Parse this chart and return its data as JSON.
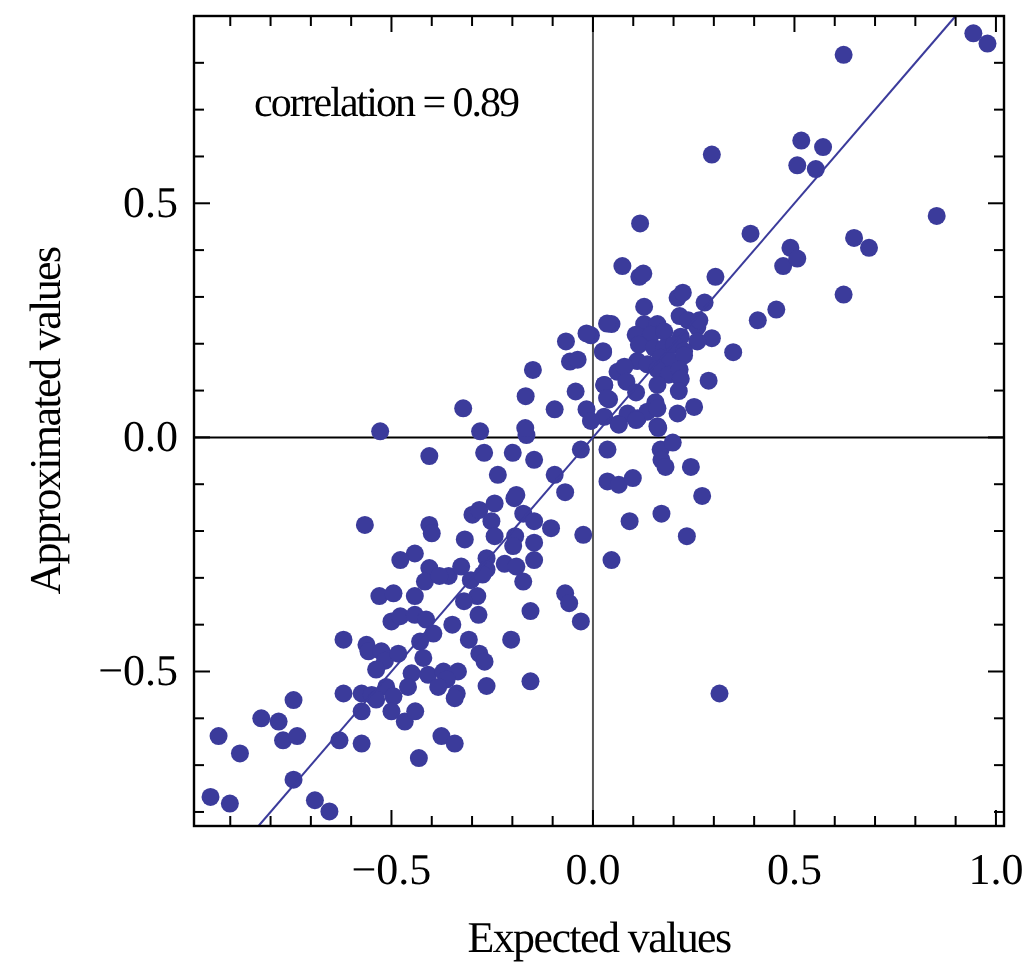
{
  "chart_data": {
    "type": "scatter",
    "xlabel": "Expected values",
    "ylabel": "Approximated values",
    "annotations": [
      "correlation = 0.89"
    ],
    "xlim": [
      -0.99,
      1.02
    ],
    "ylim": [
      -0.83,
      0.9
    ],
    "xticks": [
      {
        "value": -0.9,
        "label": null
      },
      {
        "value": -0.8,
        "label": null
      },
      {
        "value": -0.7,
        "label": null
      },
      {
        "value": -0.6,
        "label": null
      },
      {
        "value": -0.5,
        "label": "−0.5"
      },
      {
        "value": -0.4,
        "label": null
      },
      {
        "value": -0.3,
        "label": null
      },
      {
        "value": -0.2,
        "label": null
      },
      {
        "value": -0.1,
        "label": null
      },
      {
        "value": 0,
        "label": "0.0"
      },
      {
        "value": 0.1,
        "label": null
      },
      {
        "value": 0.2,
        "label": null
      },
      {
        "value": 0.3,
        "label": null
      },
      {
        "value": 0.4,
        "label": null
      },
      {
        "value": 0.5,
        "label": "0.5"
      },
      {
        "value": 0.6,
        "label": null
      },
      {
        "value": 0.7,
        "label": null
      },
      {
        "value": 0.8,
        "label": null
      },
      {
        "value": 0.9,
        "label": null
      },
      {
        "value": 1,
        "label": "1.0"
      }
    ],
    "yticks": [
      {
        "value": -0.8,
        "label": null
      },
      {
        "value": -0.7,
        "label": null
      },
      {
        "value": -0.6,
        "label": null
      },
      {
        "value": -0.5,
        "label": "−0.5"
      },
      {
        "value": -0.4,
        "label": null
      },
      {
        "value": -0.3,
        "label": null
      },
      {
        "value": -0.2,
        "label": null
      },
      {
        "value": -0.1,
        "label": null
      },
      {
        "value": 0,
        "label": "0.0"
      },
      {
        "value": 0.1,
        "label": null
      },
      {
        "value": 0.2,
        "label": null
      },
      {
        "value": 0.3,
        "label": null
      },
      {
        "value": 0.4,
        "label": null
      },
      {
        "value": 0.5,
        "label": "0.5"
      },
      {
        "value": 0.6,
        "label": null
      },
      {
        "value": 0.7,
        "label": null
      },
      {
        "value": 0.8,
        "label": null
      }
    ],
    "ref_lines": [
      {
        "axis": "x",
        "value": 0,
        "color": "#555555"
      },
      {
        "axis": "y",
        "value": 0,
        "color": "#000000"
      }
    ],
    "series": [
      {
        "marker": "circle",
        "color": "#3b3b9b",
        "x": [
          -0.528,
          -0.28,
          -0.165,
          -0.406,
          -0.27,
          -0.199,
          -0.146,
          -0.03,
          -0.236,
          -0.095,
          -0.069,
          -0.024,
          -0.104,
          -0.566,
          -0.406,
          -0.4,
          -0.299,
          -0.282,
          -0.252,
          -0.244,
          -0.195,
          -0.19,
          -0.173,
          -0.146,
          -0.193,
          -0.198,
          -0.146,
          -0.318,
          -0.244,
          -0.442,
          -0.478,
          -0.406,
          -0.358,
          -0.327,
          -0.264,
          -0.264,
          -0.219,
          -0.19,
          -0.173,
          -0.146,
          -0.303,
          -0.274,
          -0.53,
          -0.495,
          -0.442,
          -0.417,
          -0.381,
          -0.5,
          -0.478,
          -0.442,
          -0.414,
          -0.287,
          -0.284,
          -0.32,
          -0.349,
          -0.396,
          -0.155,
          -0.03,
          -0.069,
          -0.059,
          -0.619,
          -0.562,
          -0.557,
          -0.525,
          -0.516,
          -0.483,
          -0.429,
          -0.421,
          -0.308,
          -0.282,
          -0.269,
          -0.203,
          -0.538,
          -0.513,
          -0.45,
          -0.459,
          -0.409,
          -0.371,
          -0.335,
          -0.363,
          -0.384,
          -0.338,
          -0.343,
          -0.264,
          -0.155,
          -0.619,
          -0.574,
          -0.549,
          -0.538,
          -0.495,
          -0.5,
          -0.467,
          -0.441,
          -0.574,
          -0.743,
          -0.823,
          -0.78,
          -0.769,
          -0.734,
          -0.929,
          -0.876,
          -0.629,
          -0.574,
          -0.376,
          -0.343,
          -0.432,
          -0.743,
          -0.949,
          -0.901,
          -0.69,
          -0.654,
          0.944,
          0.979,
          0.622,
          0.295,
          0.517,
          0.571,
          0.507,
          0.553,
          0.117,
          0.853,
          0.391,
          0.648,
          0.685,
          0.49,
          0.472,
          0.507,
          0.622,
          0.073,
          0.115,
          0.125,
          0.304,
          0.21,
          0.223,
          0.127,
          0.277,
          0.455,
          0.409,
          0.046,
          0.127,
          0.16,
          0.215,
          0.236,
          0.259,
          0.264,
          0.106,
          0.144,
          0.177,
          0.295,
          0.218,
          0.259,
          0.025,
          0.114,
          0.152,
          0.177,
          0.201,
          0.226,
          0.348,
          0.11,
          0.135,
          0.168,
          0.193,
          0.226,
          0.061,
          0.078,
          0.16,
          0.188,
          0.215,
          0.028,
          0.083,
          0.16,
          0.218,
          0.287,
          0.04,
          0.107,
          0.155,
          0.213,
          0.251,
          0.028,
          0.064,
          0.086,
          0.111,
          0.135,
          0.16,
          0.21,
          0.16,
          -0.005,
          -0.016,
          0.035,
          -0.067,
          -0.057,
          -0.038,
          -0.149,
          0.025,
          -0.043,
          0.028,
          -0.167,
          -0.095,
          -0.322,
          -0.016,
          -0.005,
          -0.168,
          0.035,
          0.036,
          0.168,
          0.198,
          0.17,
          0.18,
          0.243,
          0.036,
          0.064,
          0.099,
          0.271,
          0.091,
          0.17,
          0.233,
          0.046,
          0.314,
          0.064,
          0.162,
          0.107
        ],
        "values": [
          0.013,
          0.013,
          0.005,
          -0.04,
          -0.033,
          -0.033,
          -0.048,
          -0.026,
          -0.08,
          -0.08,
          -0.117,
          -0.208,
          -0.194,
          -0.187,
          -0.187,
          -0.205,
          -0.165,
          -0.155,
          -0.179,
          -0.141,
          -0.13,
          -0.123,
          -0.163,
          -0.179,
          -0.211,
          -0.232,
          -0.225,
          -0.218,
          -0.211,
          -0.248,
          -0.262,
          -0.279,
          -0.296,
          -0.276,
          -0.258,
          -0.282,
          -0.27,
          -0.276,
          -0.308,
          -0.262,
          -0.305,
          -0.293,
          -0.339,
          -0.333,
          -0.339,
          -0.308,
          -0.296,
          -0.393,
          -0.382,
          -0.379,
          -0.389,
          -0.339,
          -0.379,
          -0.35,
          -0.4,
          -0.419,
          -0.371,
          -0.393,
          -0.333,
          -0.354,
          -0.432,
          -0.443,
          -0.457,
          -0.457,
          -0.477,
          -0.462,
          -0.436,
          -0.471,
          -0.432,
          -0.462,
          -0.479,
          -0.432,
          -0.496,
          -0.533,
          -0.504,
          -0.533,
          -0.507,
          -0.5,
          -0.5,
          -0.517,
          -0.533,
          -0.547,
          -0.557,
          -0.531,
          -0.521,
          -0.547,
          -0.547,
          -0.55,
          -0.56,
          -0.553,
          -0.585,
          -0.607,
          -0.585,
          -0.585,
          -0.561,
          -0.6,
          -0.607,
          -0.647,
          -0.638,
          -0.638,
          -0.675,
          -0.647,
          -0.654,
          -0.638,
          -0.654,
          -0.685,
          -0.731,
          -0.768,
          -0.782,
          -0.775,
          -0.799,
          0.863,
          0.841,
          0.817,
          0.604,
          0.634,
          0.62,
          0.581,
          0.573,
          0.457,
          0.473,
          0.435,
          0.426,
          0.405,
          0.405,
          0.366,
          0.382,
          0.305,
          0.366,
          0.343,
          0.35,
          0.343,
          0.298,
          0.309,
          0.279,
          0.288,
          0.273,
          0.25,
          0.242,
          0.242,
          0.242,
          0.259,
          0.25,
          0.236,
          0.25,
          0.219,
          0.219,
          0.226,
          0.212,
          0.215,
          0.205,
          0.182,
          0.198,
          0.191,
          0.191,
          0.198,
          0.184,
          0.182,
          0.163,
          0.156,
          0.17,
          0.163,
          0.175,
          0.14,
          0.151,
          0.145,
          0.134,
          0.145,
          0.112,
          0.119,
          0.112,
          0.125,
          0.121,
          0.081,
          0.096,
          0.075,
          0.099,
          0.065,
          0.044,
          0.029,
          0.051,
          0.041,
          0.055,
          0.062,
          0.051,
          0.024,
          0.218,
          0.222,
          0.243,
          0.205,
          0.162,
          0.166,
          0.144,
          0.184,
          0.098,
          0.112,
          0.088,
          0.06,
          0.062,
          0.06,
          0.035,
          0.02,
          0.084,
          -0.026,
          -0.026,
          -0.011,
          -0.048,
          -0.063,
          -0.063,
          -0.094,
          -0.101,
          -0.087,
          -0.125,
          -0.179,
          -0.163,
          -0.211,
          -0.262,
          -0.547,
          0.027,
          0.02,
          0.037
        ]
      },
      {
        "type": "line",
        "color": "#3b3b9b",
        "x": [
          -0.83,
          0.9
        ],
        "values": [
          -0.83,
          0.9
        ]
      }
    ]
  }
}
